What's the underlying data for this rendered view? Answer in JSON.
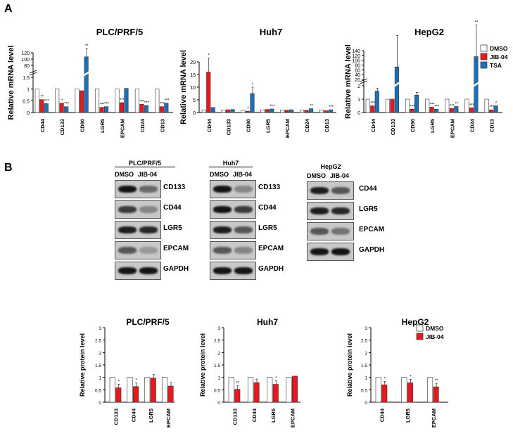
{
  "panels": {
    "a": "A",
    "b": "B"
  },
  "colors": {
    "dmso": "#ffffff",
    "jib": "#e8191e",
    "tsa": "#1f6fb5"
  },
  "chart_data": [
    {
      "type": "bar",
      "title": "PLC/PRF/5",
      "ylabel": "Relative mRNA level",
      "categories": [
        "CD44",
        "CD133",
        "CD90",
        "LGR5",
        "EPCAM",
        "CD24",
        "CD13"
      ],
      "series": [
        {
          "name": "DMSO",
          "values": [
            1,
            1,
            1,
            1,
            1,
            1,
            1
          ]
        },
        {
          "name": "JIB-04",
          "values": [
            0.55,
            0.4,
            0.93,
            0.22,
            0.42,
            0.35,
            0.25
          ]
        },
        {
          "name": "TSA",
          "values": [
            0.38,
            0.25,
            107,
            0.25,
            1.03,
            0.3,
            0.4
          ]
        }
      ],
      "stars": [
        [
          "**",
          "***"
        ],
        [
          "*",
          "***"
        ],
        [
          "",
          "**"
        ],
        [
          "***",
          "***"
        ],
        [
          "***",
          ""
        ],
        [
          "***",
          "***"
        ],
        [
          "***",
          "***"
        ]
      ],
      "ticks_low": [
        "0",
        "0.5",
        "1",
        "1.5"
      ],
      "ticks_high": [
        "80",
        "100",
        "120"
      ]
    },
    {
      "type": "bar",
      "title": "Huh7",
      "ylabel": "Relative mRNA level",
      "categories": [
        "CD44",
        "CD133",
        "CD90",
        "LGR5",
        "EPCAM",
        "CD24",
        "CD13"
      ],
      "ylim": [
        0,
        20
      ],
      "ticks": [
        "0",
        "5",
        "10",
        "15",
        "20"
      ],
      "series": [
        {
          "name": "DMSO",
          "values": [
            1,
            1,
            1,
            1,
            1,
            1,
            1
          ]
        },
        {
          "name": "JIB-04",
          "values": [
            16,
            1.1,
            0.5,
            1.2,
            0.9,
            0.9,
            0.7
          ]
        },
        {
          "name": "TSA",
          "values": [
            2,
            1.2,
            7.5,
            1.4,
            1.1,
            1.5,
            1.1
          ]
        }
      ],
      "stars": [
        [
          "*",
          ""
        ],
        [
          "",
          ""
        ],
        [
          "*",
          "*"
        ],
        [
          "",
          "***"
        ],
        [
          "",
          ""
        ],
        [
          "",
          "**"
        ],
        [
          "",
          "***"
        ]
      ]
    },
    {
      "type": "bar",
      "title": "HepG2",
      "ylabel": "Relative mRNA level",
      "categories": [
        "CD44",
        "CD133",
        "CD90",
        "LGR5",
        "EPCAM",
        "CD24",
        "CD13"
      ],
      "series": [
        {
          "name": "DMSO",
          "values": [
            1,
            1,
            1,
            1,
            1,
            1,
            1
          ]
        },
        {
          "name": "JIB-04",
          "values": [
            0.5,
            1,
            0.25,
            0.4,
            0.3,
            0.35,
            0.2
          ]
        },
        {
          "name": "TSA",
          "values": [
            1.6,
            72,
            1.3,
            0.25,
            0.45,
            115,
            0.5
          ]
        }
      ],
      "stars": [
        [
          "***",
          ""
        ],
        [
          "",
          ""
        ],
        [
          "***",
          ""
        ],
        [
          "***",
          "***"
        ],
        [
          "***",
          "**"
        ],
        [
          "***",
          "**"
        ],
        [
          "***",
          "*"
        ]
      ],
      "ticks_low": [
        "0",
        "1",
        "2"
      ],
      "ticks_high": [
        "20",
        "40",
        "60",
        "80",
        "100",
        "120",
        "140"
      ],
      "legend": [
        "DMSO",
        "JIB-04",
        "TSA"
      ]
    },
    {
      "type": "bar",
      "title": "PLC/PRF/5",
      "ylabel": "Relative protein level",
      "categories": [
        "CD133",
        "CD44",
        "LGR5",
        "EPCAM"
      ],
      "ylim": [
        0,
        3
      ],
      "ticks": [
        "0",
        "0.5",
        "1",
        "1.5",
        "2",
        "2.5",
        "3"
      ],
      "series": [
        {
          "name": "DMSO",
          "values": [
            1,
            1,
            1,
            1
          ]
        },
        {
          "name": "JIB-04",
          "values": [
            0.58,
            0.63,
            0.97,
            0.65
          ]
        }
      ],
      "stars": [
        "*",
        "*",
        "",
        ""
      ]
    },
    {
      "type": "bar",
      "title": "Huh7",
      "ylabel": "Relative protein level",
      "categories": [
        "CD133",
        "CD44",
        "LGR5",
        "EPCAM"
      ],
      "ylim": [
        0,
        3
      ],
      "ticks": [
        "0",
        "0.5",
        "1",
        "1.5",
        "2",
        "2.5",
        "3"
      ],
      "series": [
        {
          "name": "DMSO",
          "values": [
            1,
            1,
            1,
            1
          ]
        },
        {
          "name": "JIB-04",
          "values": [
            0.52,
            0.79,
            0.72,
            1.05
          ]
        }
      ],
      "stars": [
        "**",
        "",
        "*",
        ""
      ]
    },
    {
      "type": "bar",
      "title": "HepG2",
      "ylabel": "Relative protein level",
      "categories": [
        "CD44",
        "LGR5",
        "EPCAM"
      ],
      "ylim": [
        0,
        3
      ],
      "ticks": [
        "0",
        "0.5",
        "1",
        "1.5",
        "2",
        "2.5",
        "3"
      ],
      "series": [
        {
          "name": "DMSO",
          "values": [
            1,
            1,
            1
          ]
        },
        {
          "name": "JIB-04",
          "values": [
            0.7,
            0.78,
            0.62
          ]
        }
      ],
      "stars": [
        "*",
        "*",
        "**"
      ],
      "legend": [
        "DMSO",
        "JIB-04"
      ]
    }
  ],
  "blots": [
    {
      "cell": "PLC/PRF/5",
      "lanes": [
        "DMSO",
        "JIB-04"
      ],
      "proteins": [
        "CD133",
        "CD44",
        "LGR5",
        "EPCAM",
        "GAPDH"
      ]
    },
    {
      "cell": "Huh7",
      "lanes": [
        "DMSO",
        "JIB-04"
      ],
      "proteins": [
        "CD133",
        "CD44",
        "LGR5",
        "EPCAM",
        "GAPDH"
      ]
    },
    {
      "cell": "HepG2",
      "lanes": [
        "DMSO",
        "JIB-04"
      ],
      "proteins": [
        "CD44",
        "LGR5",
        "EPCAM",
        "GAPDH"
      ]
    }
  ]
}
